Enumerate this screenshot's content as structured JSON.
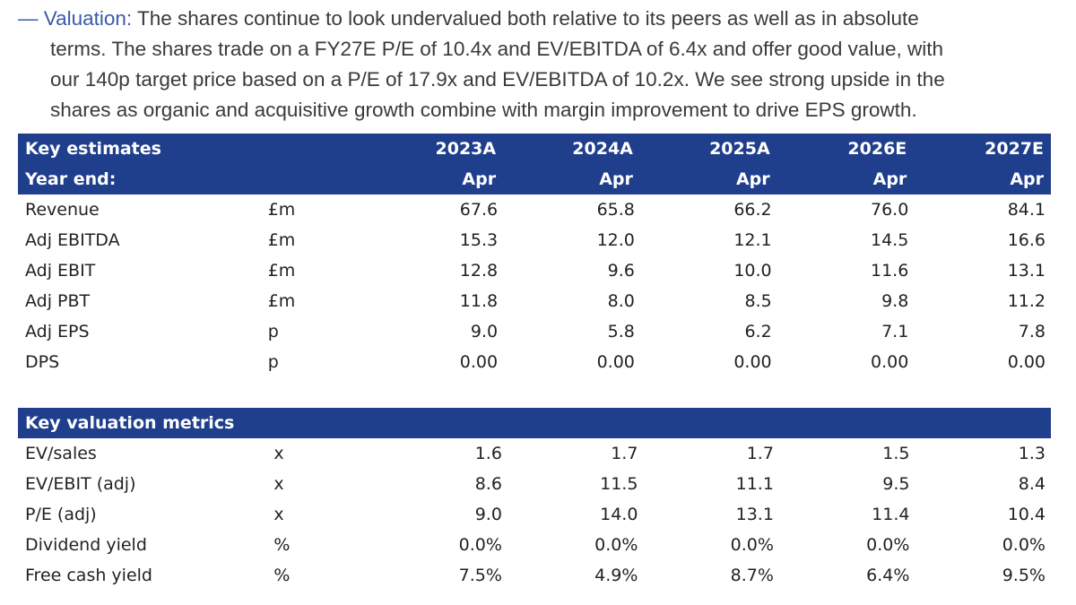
{
  "paragraph": {
    "dash": "—",
    "label": "Valuation:",
    "line1_text": " The shares continue to look undervalued both relative to its peers as well as in absolute",
    "line2": "terms. The shares trade on a FY27E P/E of 10.4x and EV/EBITDA of 6.4x and offer good value, with",
    "line3": "our 140p target price based on a P/E of 17.9x and EV/EBITDA of 10.2x. We see strong upside in the",
    "line4": "shares as organic and acquisitive growth combine with margin improvement to drive EPS growth."
  },
  "key_estimates": {
    "header_title": "Key estimates",
    "header_sub": "Year end:",
    "years": [
      "2023A",
      "2024A",
      "2025A",
      "2026E",
      "2027E"
    ],
    "year_end_months": [
      "Apr",
      "Apr",
      "Apr",
      "Apr",
      "Apr"
    ],
    "rows": [
      {
        "label": "Revenue",
        "unit": "£m",
        "values": [
          "67.6",
          "65.8",
          "66.2",
          "76.0",
          "84.1"
        ]
      },
      {
        "label": "Adj EBITDA",
        "unit": "£m",
        "values": [
          "15.3",
          "12.0",
          "12.1",
          "14.5",
          "16.6"
        ]
      },
      {
        "label": "Adj EBIT",
        "unit": "£m",
        "values": [
          "12.8",
          "9.6",
          "10.0",
          "11.6",
          "13.1"
        ]
      },
      {
        "label": "Adj PBT",
        "unit": "£m",
        "values": [
          "11.8",
          "8.0",
          "8.5",
          "9.8",
          "11.2"
        ]
      },
      {
        "label": "Adj EPS",
        "unit": "p",
        "values": [
          "9.0",
          "5.8",
          "6.2",
          "7.1",
          "7.8"
        ]
      },
      {
        "label": "DPS",
        "unit": "p",
        "values": [
          "0.00",
          "0.00",
          "0.00",
          "0.00",
          "0.00"
        ]
      }
    ]
  },
  "key_valuation": {
    "header_title": "Key valuation metrics",
    "rows": [
      {
        "label": "EV/sales",
        "unit": "x",
        "values": [
          "1.6",
          "1.7",
          "1.7",
          "1.5",
          "1.3"
        ]
      },
      {
        "label": "EV/EBIT (adj)",
        "unit": "x",
        "values": [
          "8.6",
          "11.5",
          "11.1",
          "9.5",
          "8.4"
        ]
      },
      {
        "label": "P/E (adj)",
        "unit": "x",
        "values": [
          "9.0",
          "14.0",
          "13.1",
          "11.4",
          "10.4"
        ]
      },
      {
        "label": "Dividend yield",
        "unit": "%",
        "values": [
          "0.0%",
          "0.0%",
          "0.0%",
          "0.0%",
          "0.0%"
        ]
      },
      {
        "label": "Free cash yield",
        "unit": "%",
        "values": [
          "7.5%",
          "4.9%",
          "8.7%",
          "6.4%",
          "9.5%"
        ]
      }
    ]
  },
  "colors": {
    "header_bg": "#1f3e8c",
    "accent": "#3a5aa8"
  }
}
